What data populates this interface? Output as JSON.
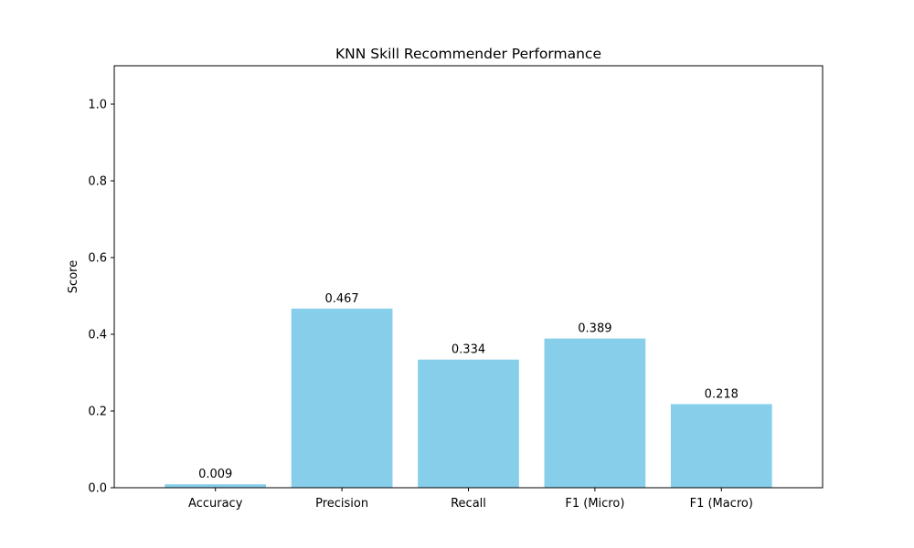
{
  "chart_data": {
    "type": "bar",
    "title": "KNN Skill Recommender Performance",
    "xlabel": "",
    "ylabel": "Score",
    "categories": [
      "Accuracy",
      "Precision",
      "Recall",
      "F1 (Micro)",
      "F1 (Macro)"
    ],
    "values": [
      0.009,
      0.467,
      0.334,
      0.389,
      0.218
    ],
    "value_labels": [
      "0.009",
      "0.467",
      "0.334",
      "0.389",
      "0.218"
    ],
    "ylim": [
      0,
      1.1
    ],
    "yticks": [
      0.0,
      0.2,
      0.4,
      0.6,
      0.8,
      1.0
    ],
    "ytick_labels": [
      "0.0",
      "0.2",
      "0.4",
      "0.6",
      "0.8",
      "1.0"
    ],
    "bar_color": "#87ceeb",
    "grid": false,
    "legend": "none"
  }
}
